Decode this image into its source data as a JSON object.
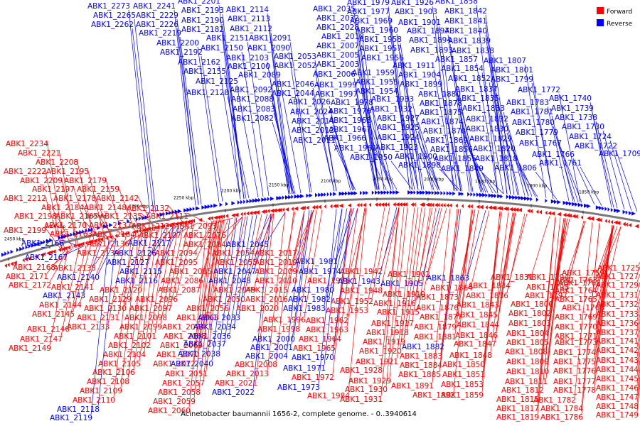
{
  "caption": "Acinetobacter baumannii 1656-2, complete genome. - 0..3940614",
  "legend": [
    {
      "label": "Forward",
      "color": "#ff0000"
    },
    {
      "label": "Reverse",
      "color": "#0000ff"
    }
  ],
  "colors": {
    "forward": "#ff0000",
    "reverse": "#0000ff",
    "backbone": "#808080"
  },
  "ticks": [
    "2450 kbp",
    "2400 kbp",
    "2350 kbp",
    "2300 kbp",
    "2250 kbp",
    "2200 kbp",
    "2150 kbp",
    "2100 kbp",
    "2050 kbp",
    "2000 kbp",
    "1950 kbp",
    "1900 kbp",
    "1850 kbp"
  ],
  "reverse_labels": [
    [
      "ABK1_2273",
      123,
      12
    ],
    [
      "ABK1_2241",
      187,
      12
    ],
    [
      "ABK1_2201",
      250,
      5
    ],
    [
      "ABK1_2265",
      131,
      25
    ],
    [
      "ABK1_2229",
      191,
      25
    ],
    [
      "ABK1_2193",
      255,
      18
    ],
    [
      "ABK1_2114",
      318,
      17
    ],
    [
      "ABK1_2262",
      128,
      38
    ],
    [
      "ABK1_2226",
      191,
      38
    ],
    [
      "ABK1_2190",
      255,
      32
    ],
    [
      "ABK1_2113",
      320,
      30
    ],
    [
      "ABK1_2219",
      195,
      50
    ],
    [
      "ABK1_2182",
      255,
      45
    ],
    [
      "ABK1_2112",
      323,
      44
    ],
    [
      "ABK1_2151",
      290,
      57
    ],
    [
      "ABK1_2091",
      350,
      57
    ],
    [
      "ABK1_2200",
      220,
      64
    ],
    [
      "ABK1_2150",
      282,
      71
    ],
    [
      "ABK1_2090",
      348,
      71
    ],
    [
      "ABK1_2192",
      225,
      77
    ],
    [
      "ABK1_2103",
      318,
      85
    ],
    [
      "ABK1_2053",
      385,
      83
    ],
    [
      "ABK1_2162",
      250,
      91
    ],
    [
      "ABK1_2100",
      320,
      97
    ],
    [
      "ABK1_2052",
      385,
      96
    ],
    [
      "ABK1_2155",
      258,
      104
    ],
    [
      "ABK1_2089",
      335,
      109
    ],
    [
      "ABK1_2125",
      275,
      118
    ],
    [
      "ABK1_2046",
      382,
      122
    ],
    [
      "ABK1_2092",
      323,
      130
    ],
    [
      "ABK1_2044",
      382,
      135
    ],
    [
      "ABK1_2128",
      262,
      134
    ],
    [
      "ABK1_2088",
      325,
      143
    ],
    [
      "ABK1_2026",
      405,
      147
    ],
    [
      "ABK1_2083",
      327,
      157
    ],
    [
      "ABK1_2024",
      408,
      161
    ],
    [
      "ABK1_2082",
      325,
      170
    ],
    [
      "ABK1_2014",
      410,
      174
    ],
    [
      "ABK1_2012",
      410,
      187
    ],
    [
      "ABK1_2011",
      412,
      201
    ],
    [
      "ABK1_1979",
      488,
      7
    ],
    [
      "ABK1_1926",
      550,
      7
    ],
    [
      "ABK1_1858",
      612,
      5
    ],
    [
      "ABK1_2035",
      440,
      16
    ],
    [
      "ABK1_1977",
      488,
      20
    ],
    [
      "ABK1_1903",
      555,
      20
    ],
    [
      "ABK1_1842",
      625,
      19
    ],
    [
      "ABK1_2032",
      445,
      29
    ],
    [
      "ABK1_1969",
      492,
      33
    ],
    [
      "ABK1_1901",
      560,
      35
    ],
    [
      "ABK1_1841",
      625,
      33
    ],
    [
      "ABK1_2028",
      445,
      42
    ],
    [
      "ABK1_1960",
      500,
      46
    ],
    [
      "ABK1_1897",
      572,
      47
    ],
    [
      "ABK1_1840",
      625,
      47
    ],
    [
      "ABK1_2018",
      452,
      55
    ],
    [
      "ABK1_1958",
      505,
      59
    ],
    [
      "ABK1_1894",
      575,
      60
    ],
    [
      "ABK1_1839",
      630,
      61
    ],
    [
      "ABK1_2007",
      445,
      68
    ],
    [
      "ABK1_1957",
      505,
      72
    ],
    [
      "ABK1_1893",
      577,
      74
    ],
    [
      "ABK1_1838",
      635,
      75
    ],
    [
      "ABK1_2005",
      445,
      81
    ],
    [
      "ABK1_1956",
      508,
      85
    ],
    [
      "ABK1_1857",
      612,
      87
    ],
    [
      "ABK1_1807",
      680,
      89
    ],
    [
      "ABK1_2003",
      445,
      94
    ],
    [
      "ABK1_1911",
      552,
      96
    ],
    [
      "ABK1_1854",
      620,
      100
    ],
    [
      "ABK1_1801",
      690,
      102
    ],
    [
      "ABK1_2006",
      440,
      108
    ],
    [
      "ABK1_1959",
      495,
      106
    ],
    [
      "ABK1_1904",
      560,
      109
    ],
    [
      "ABK1_1852",
      630,
      114
    ],
    [
      "ABK1_1799",
      690,
      115
    ],
    [
      "ABK1_1999",
      442,
      123
    ],
    [
      "ABK1_1955",
      500,
      119
    ],
    [
      "ABK1_1899",
      562,
      122
    ],
    [
      "ABK1_1837",
      640,
      129
    ],
    [
      "ABK1_1772",
      728,
      130
    ],
    [
      "ABK1_1997",
      443,
      136
    ],
    [
      "ABK1_1954",
      500,
      132
    ],
    [
      "ABK1_1880",
      588,
      136
    ],
    [
      "ABK1_1835",
      642,
      142
    ],
    [
      "ABK1_1740",
      772,
      142
    ],
    [
      "ABK1_1978",
      465,
      148
    ],
    [
      "ABK1_1933",
      522,
      143
    ],
    [
      "ABK1_1878",
      590,
      149
    ],
    [
      "ABK1_1783",
      712,
      148
    ],
    [
      "ABK1_1833",
      650,
      156
    ],
    [
      "ABK1_1739",
      775,
      156
    ],
    [
      "ABK1_1976",
      462,
      160
    ],
    [
      "ABK1_1932",
      520,
      157
    ],
    [
      "ABK1_1875",
      590,
      162
    ],
    [
      "ABK1_1781",
      718,
      161
    ],
    [
      "ABK1_1738",
      780,
      169
    ],
    [
      "ABK1_1968",
      462,
      173
    ],
    [
      "ABK1_1927",
      530,
      170
    ],
    [
      "ABK1_1874",
      592,
      175
    ],
    [
      "ABK1_1832",
      655,
      171
    ],
    [
      "ABK1_1780",
      720,
      176
    ],
    [
      "ABK1_1730",
      790,
      182
    ],
    [
      "ABK1_1967",
      462,
      186
    ],
    [
      "ABK1_1925",
      530,
      183
    ],
    [
      "ABK1_1870",
      595,
      188
    ],
    [
      "ABK1_1830",
      655,
      185
    ],
    [
      "ABK1_1779",
      725,
      190
    ],
    [
      "ABK1_1966",
      455,
      198
    ],
    [
      "ABK1_1924",
      530,
      197
    ],
    [
      "ABK1_1869",
      598,
      201
    ],
    [
      "ABK1_1829",
      660,
      199
    ],
    [
      "ABK1_1724",
      800,
      196
    ],
    [
      "ABK1_1961",
      470,
      212
    ],
    [
      "ABK1_1923",
      528,
      211
    ],
    [
      "ABK1_1856",
      605,
      214
    ],
    [
      "ABK1_1820",
      665,
      213
    ],
    [
      "ABK1_1767",
      730,
      205
    ],
    [
      "ABK1_1722",
      808,
      209
    ],
    [
      "ABK1_1950",
      492,
      225
    ],
    [
      "ABK1_1900",
      555,
      224
    ],
    [
      "ABK1_1855",
      610,
      227
    ],
    [
      "ABK1_1818",
      668,
      227
    ],
    [
      "ABK1_1766",
      748,
      221
    ],
    [
      "ABK1_1709",
      842,
      220
    ],
    [
      "ABK1_1898",
      560,
      236
    ],
    [
      "ABK1_1849",
      620,
      241
    ],
    [
      "ABK1_1806",
      695,
      240
    ],
    [
      "ABK1_1761",
      758,
      233
    ]
  ],
  "forward_labels": [
    [
      "ABK1_2234",
      8,
      206
    ],
    [
      "ABK1_2221",
      25,
      219
    ],
    [
      "ABK1_2208",
      50,
      232
    ],
    [
      "ABK1_2222",
      5,
      245
    ],
    [
      "ABK1_2195",
      65,
      245
    ],
    [
      "ABK1_2209",
      28,
      258
    ],
    [
      "ABK1_2179",
      90,
      258
    ],
    [
      "ABK1_2197",
      45,
      270
    ],
    [
      "ABK1_2159",
      108,
      270
    ],
    [
      "ABK1_2212",
      5,
      283
    ],
    [
      "ABK1_2178",
      75,
      283
    ],
    [
      "ABK1_2142",
      135,
      283
    ],
    [
      "ABK1_2184",
      58,
      296
    ],
    [
      "ABK1_2148",
      118,
      296
    ],
    [
      "ABK1_2132",
      178,
      297
    ],
    [
      "ABK1_2198",
      20,
      308
    ],
    [
      "ABK1_2165",
      78,
      308
    ],
    [
      "ABK1_2135",
      140,
      308
    ],
    [
      "ABK1_2111",
      205,
      308
    ],
    [
      "ABK1_2170",
      62,
      321
    ],
    [
      "ABK1_2137",
      125,
      321
    ],
    [
      "ABK1_2124",
      185,
      322
    ],
    [
      "ABK1_2093",
      245,
      322
    ],
    [
      "ABK1_2199",
      5,
      328
    ],
    [
      "ABK1_2163",
      70,
      333
    ],
    [
      "ABK1_2134",
      130,
      334
    ],
    [
      "ABK1_2107",
      195,
      335
    ],
    [
      "ABK1_2076",
      258,
      335
    ],
    [
      "ABK1_2136",
      122,
      347
    ],
    [
      "ABK1_2084",
      258,
      348
    ],
    [
      "ABK1_2139",
      108,
      360
    ],
    [
      "ABK1_2094",
      218,
      360
    ],
    [
      "ABK1_2054",
      298,
      360
    ],
    [
      "ABK1_2017",
      358,
      360
    ],
    [
      "ABK1_2095",
      218,
      373
    ],
    [
      "ABK1_2055",
      302,
      373
    ],
    [
      "ABK1_2019",
      358,
      373
    ],
    [
      "ABK1_2168",
      18,
      380
    ],
    [
      "ABK1_2138",
      75,
      381
    ],
    [
      "ABK1_2085",
      238,
      386
    ],
    [
      "ABK1_2009",
      358,
      386
    ],
    [
      "ABK1_1942",
      478,
      386
    ],
    [
      "ABK1_2171",
      8,
      393
    ],
    [
      "ABK1_2086",
      226,
      399
    ],
    [
      "ABK1_2010",
      358,
      399
    ],
    [
      "ABK1_1975",
      432,
      399
    ],
    [
      "ABK1_2172",
      12,
      405
    ],
    [
      "ABK1_2141",
      72,
      408
    ],
    [
      "ABK1_2087",
      222,
      412
    ],
    [
      "ABK1_2049",
      300,
      412
    ],
    [
      "ABK1_2015",
      345,
      412
    ],
    [
      "ABK1_1948",
      478,
      413
    ],
    [
      "ABK1_2120",
      140,
      412
    ],
    [
      "ABK1_2129",
      125,
      425
    ],
    [
      "ABK1_2096",
      190,
      425
    ],
    [
      "ABK1_2050",
      285,
      425
    ],
    [
      "ABK1_2016",
      345,
      425
    ],
    [
      "ABK1_1952",
      465,
      428
    ],
    [
      "ABK1_2144",
      55,
      433
    ],
    [
      "ABK1_2130",
      118,
      438
    ],
    [
      "ABK1_2097",
      182,
      438
    ],
    [
      "ABK1_2056",
      262,
      438
    ],
    [
      "ABK1_2020",
      332,
      438
    ],
    [
      "ABK1_1953",
      458,
      441
    ],
    [
      "ABK1_2145",
      45,
      446
    ],
    [
      "ABK1_2131",
      108,
      451
    ],
    [
      "ABK1_2098",
      175,
      451
    ],
    [
      "ABK1_2063",
      248,
      451
    ],
    [
      "ABK1_1996",
      370,
      454
    ],
    [
      "ABK1_1962",
      430,
      455
    ],
    [
      "ABK1_2133",
      94,
      464
    ],
    [
      "ABK1_2099",
      168,
      464
    ],
    [
      "ABK1_2074",
      228,
      464
    ],
    [
      "ABK1_1998",
      362,
      467
    ],
    [
      "ABK1_1963",
      430,
      468
    ],
    [
      "ABK1_2146",
      38,
      467
    ],
    [
      "ABK1_2101",
      160,
      477
    ],
    [
      "ABK1_2068",
      230,
      477
    ],
    [
      "ABK1_1964",
      420,
      481
    ],
    [
      "ABK1_2147",
      28,
      481
    ],
    [
      "ABK1_2102",
      152,
      490
    ],
    [
      "ABK1_2069",
      225,
      490
    ],
    [
      "ABK1_1965",
      412,
      494
    ],
    [
      "ABK1_2149",
      12,
      494
    ],
    [
      "ABK1_2070",
      220,
      503
    ],
    [
      "ABK1_2104",
      145,
      503
    ],
    [
      "ABK1_2105",
      138,
      516
    ],
    [
      "ABK1_2072",
      215,
      516
    ],
    [
      "ABK1_2008",
      330,
      517
    ],
    [
      "ABK1_2106",
      130,
      528
    ],
    [
      "ABK1_2051",
      232,
      530
    ],
    [
      "ABK1_2013",
      318,
      530
    ],
    [
      "ABK1_2108",
      122,
      541
    ],
    [
      "ABK1_2057",
      228,
      543
    ],
    [
      "ABK1_2021",
      302,
      543
    ],
    [
      "ABK1_1972",
      410,
      535
    ],
    [
      "ABK1_2109",
      112,
      554
    ],
    [
      "ABK1_2058",
      222,
      556
    ],
    [
      "ABK1_1984",
      432,
      561
    ],
    [
      "ABK1_2110",
      102,
      567
    ],
    [
      "ABK1_2059",
      215,
      569
    ],
    [
      "ABK1_2060",
      208,
      582
    ],
    [
      "ABK1_1902",
      545,
      390
    ],
    [
      "ABK1_1910",
      538,
      418
    ],
    [
      "ABK1_1915",
      530,
      443
    ],
    [
      "ABK1_1916",
      525,
      431
    ],
    [
      "ABK1_1917",
      522,
      459
    ],
    [
      "ABK1_1918",
      515,
      472
    ],
    [
      "ABK1_1919",
      510,
      485
    ],
    [
      "ABK1_1920",
      505,
      498
    ],
    [
      "ABK1_1921",
      500,
      513
    ],
    [
      "ABK1_1928",
      478,
      525
    ],
    [
      "ABK1_1929",
      490,
      540
    ],
    [
      "ABK1_1930",
      485,
      552
    ],
    [
      "ABK1_1931",
      478,
      566
    ],
    [
      "ABK1_1864",
      605,
      409
    ],
    [
      "ABK1_1873",
      585,
      422
    ],
    [
      "ABK1_1876",
      585,
      437
    ],
    [
      "ABK1_1877",
      590,
      450
    ],
    [
      "ABK1_1881",
      582,
      478
    ],
    [
      "ABK1_1879",
      582,
      464
    ],
    [
      "ABK1_1883",
      562,
      505
    ],
    [
      "ABK1_1884",
      562,
      518
    ],
    [
      "ABK1_1885",
      560,
      531
    ],
    [
      "ABK1_1891",
      550,
      547
    ],
    [
      "ABK1_1892",
      580,
      560
    ],
    [
      "ABK1_1859",
      620,
      560
    ],
    [
      "ABK1_1853",
      620,
      545
    ],
    [
      "ABK1_1851",
      622,
      531
    ],
    [
      "ABK1_1850",
      622,
      517
    ],
    [
      "ABK1_1848",
      632,
      504
    ],
    [
      "ABK1_1847",
      638,
      488
    ],
    [
      "ABK1_1846",
      640,
      476
    ],
    [
      "ABK1_1845",
      640,
      447
    ],
    [
      "ABK1_1844",
      642,
      461
    ],
    [
      "ABK1_1843",
      642,
      433
    ],
    [
      "ABK1_1836",
      655,
      420
    ],
    [
      "ABK1_1834",
      658,
      406
    ],
    [
      "ABK1_1831",
      690,
      394
    ],
    [
      "ABK1_1794",
      740,
      394
    ],
    [
      "ABK1_1795",
      740,
      408
    ],
    [
      "ABK1_1797",
      738,
      420
    ],
    [
      "ABK1_1800",
      718,
      432
    ],
    [
      "ABK1_1802",
      715,
      445
    ],
    [
      "ABK1_1803",
      715,
      459
    ],
    [
      "ABK1_1804",
      712,
      473
    ],
    [
      "ABK1_1805",
      712,
      486
    ],
    [
      "ABK1_1808",
      710,
      499
    ],
    [
      "ABK1_1809",
      712,
      513
    ],
    [
      "ABK1_1810",
      712,
      527
    ],
    [
      "ABK1_1811",
      710,
      541
    ],
    [
      "ABK1_1812",
      705,
      553
    ],
    [
      "ABK1_1815",
      698,
      566
    ],
    [
      "ABK1_1817",
      698,
      579
    ],
    [
      "ABK1_1819",
      698,
      591
    ],
    [
      "ABK1_1782",
      750,
      567
    ],
    [
      "ABK1_1784",
      760,
      579
    ],
    [
      "ABK1_1786",
      760,
      591
    ],
    [
      "ABK1_1778",
      778,
      553
    ],
    [
      "ABK1_1777",
      778,
      541
    ],
    [
      "ABK1_1776",
      778,
      526
    ],
    [
      "ABK1_1775",
      778,
      513
    ],
    [
      "ABK1_1774",
      778,
      500
    ],
    [
      "ABK1_1773",
      780,
      486
    ],
    [
      "ABK1_1771",
      780,
      477
    ],
    [
      "ABK1_1770",
      780,
      464
    ],
    [
      "ABK1_1769",
      780,
      450
    ],
    [
      "ABK1_1765",
      780,
      425
    ],
    [
      "ABK1_1764",
      780,
      413
    ],
    [
      "ABK1_1763",
      780,
      398
    ],
    [
      "ABK1_1762",
      785,
      402
    ],
    [
      "ABK1_1759",
      790,
      388
    ],
    [
      "ABK1_1768",
      790,
      437
    ],
    [
      "ABK1_1725",
      840,
      381
    ],
    [
      "ABK1_1727",
      838,
      393
    ],
    [
      "ABK1_1729",
      838,
      405
    ],
    [
      "ABK1_1731",
      838,
      419
    ],
    [
      "ABK1_1732",
      838,
      432
    ],
    [
      "ABK1_1733",
      838,
      446
    ],
    [
      "ABK1_1736",
      838,
      459
    ],
    [
      "ABK1_1737",
      838,
      472
    ],
    [
      "ABK1_1741",
      838,
      484
    ],
    [
      "ABK1_1742",
      838,
      497
    ],
    [
      "ABK1_1743",
      838,
      511
    ],
    [
      "ABK1_1744",
      838,
      524
    ],
    [
      "ABK1_1745",
      838,
      537
    ],
    [
      "ABK1_1746",
      838,
      550
    ],
    [
      "ABK1_1747",
      838,
      563
    ],
    [
      "ABK1_1748",
      838,
      576
    ],
    [
      "ABK1_1749",
      838,
      588
    ]
  ],
  "reverse_labels_lower": [
    [
      "ABK1_2045",
      318,
      348
    ],
    [
      "ABK1_1981",
      415,
      372
    ],
    [
      "ABK1_2166",
      30,
      346
    ],
    [
      "ABK1_2117",
      180,
      346
    ],
    [
      "ABK1_2167",
      35,
      366
    ],
    [
      "ABK1_2126",
      160,
      360
    ],
    [
      "ABK1_2127",
      150,
      373
    ],
    [
      "ABK1_2115",
      168,
      386
    ],
    [
      "ABK1_2047",
      300,
      386
    ],
    [
      "ABK1_1974",
      420,
      386
    ],
    [
      "ABK1_2140",
      80,
      394
    ],
    [
      "ABK1_2116",
      162,
      399
    ],
    [
      "ABK1_2048",
      293,
      399
    ],
    [
      "ABK1_2143",
      60,
      420
    ],
    [
      "ABK1_1980",
      410,
      412
    ],
    [
      "ABK1_1982",
      405,
      425
    ],
    [
      "ABK1_1983",
      398,
      438
    ],
    [
      "ABK1_2033",
      278,
      451
    ],
    [
      "ABK1_2034",
      272,
      464
    ],
    [
      "ABK1_2036",
      265,
      477
    ],
    [
      "ABK1_2037",
      258,
      488
    ],
    [
      "ABK1_2038",
      250,
      502
    ],
    [
      "ABK1_2040",
      240,
      516
    ],
    [
      "ABK1_2022",
      298,
      556
    ],
    [
      "ABK1_2000",
      355,
      481
    ],
    [
      "ABK1_2001",
      352,
      493
    ],
    [
      "ABK1_2004",
      345,
      505
    ],
    [
      "ABK1_1970",
      410,
      507
    ],
    [
      "ABK1_1971",
      398,
      522
    ],
    [
      "ABK1_1973",
      390,
      549
    ],
    [
      "ABK1_2118",
      80,
      580
    ],
    [
      "ABK1_2119",
      70,
      592
    ],
    [
      "ABK1_1943",
      475,
      400
    ],
    [
      "ABK1_1905",
      535,
      403
    ],
    [
      "ABK1_1863",
      600,
      395
    ],
    [
      "ABK1_1882",
      565,
      492
    ]
  ]
}
